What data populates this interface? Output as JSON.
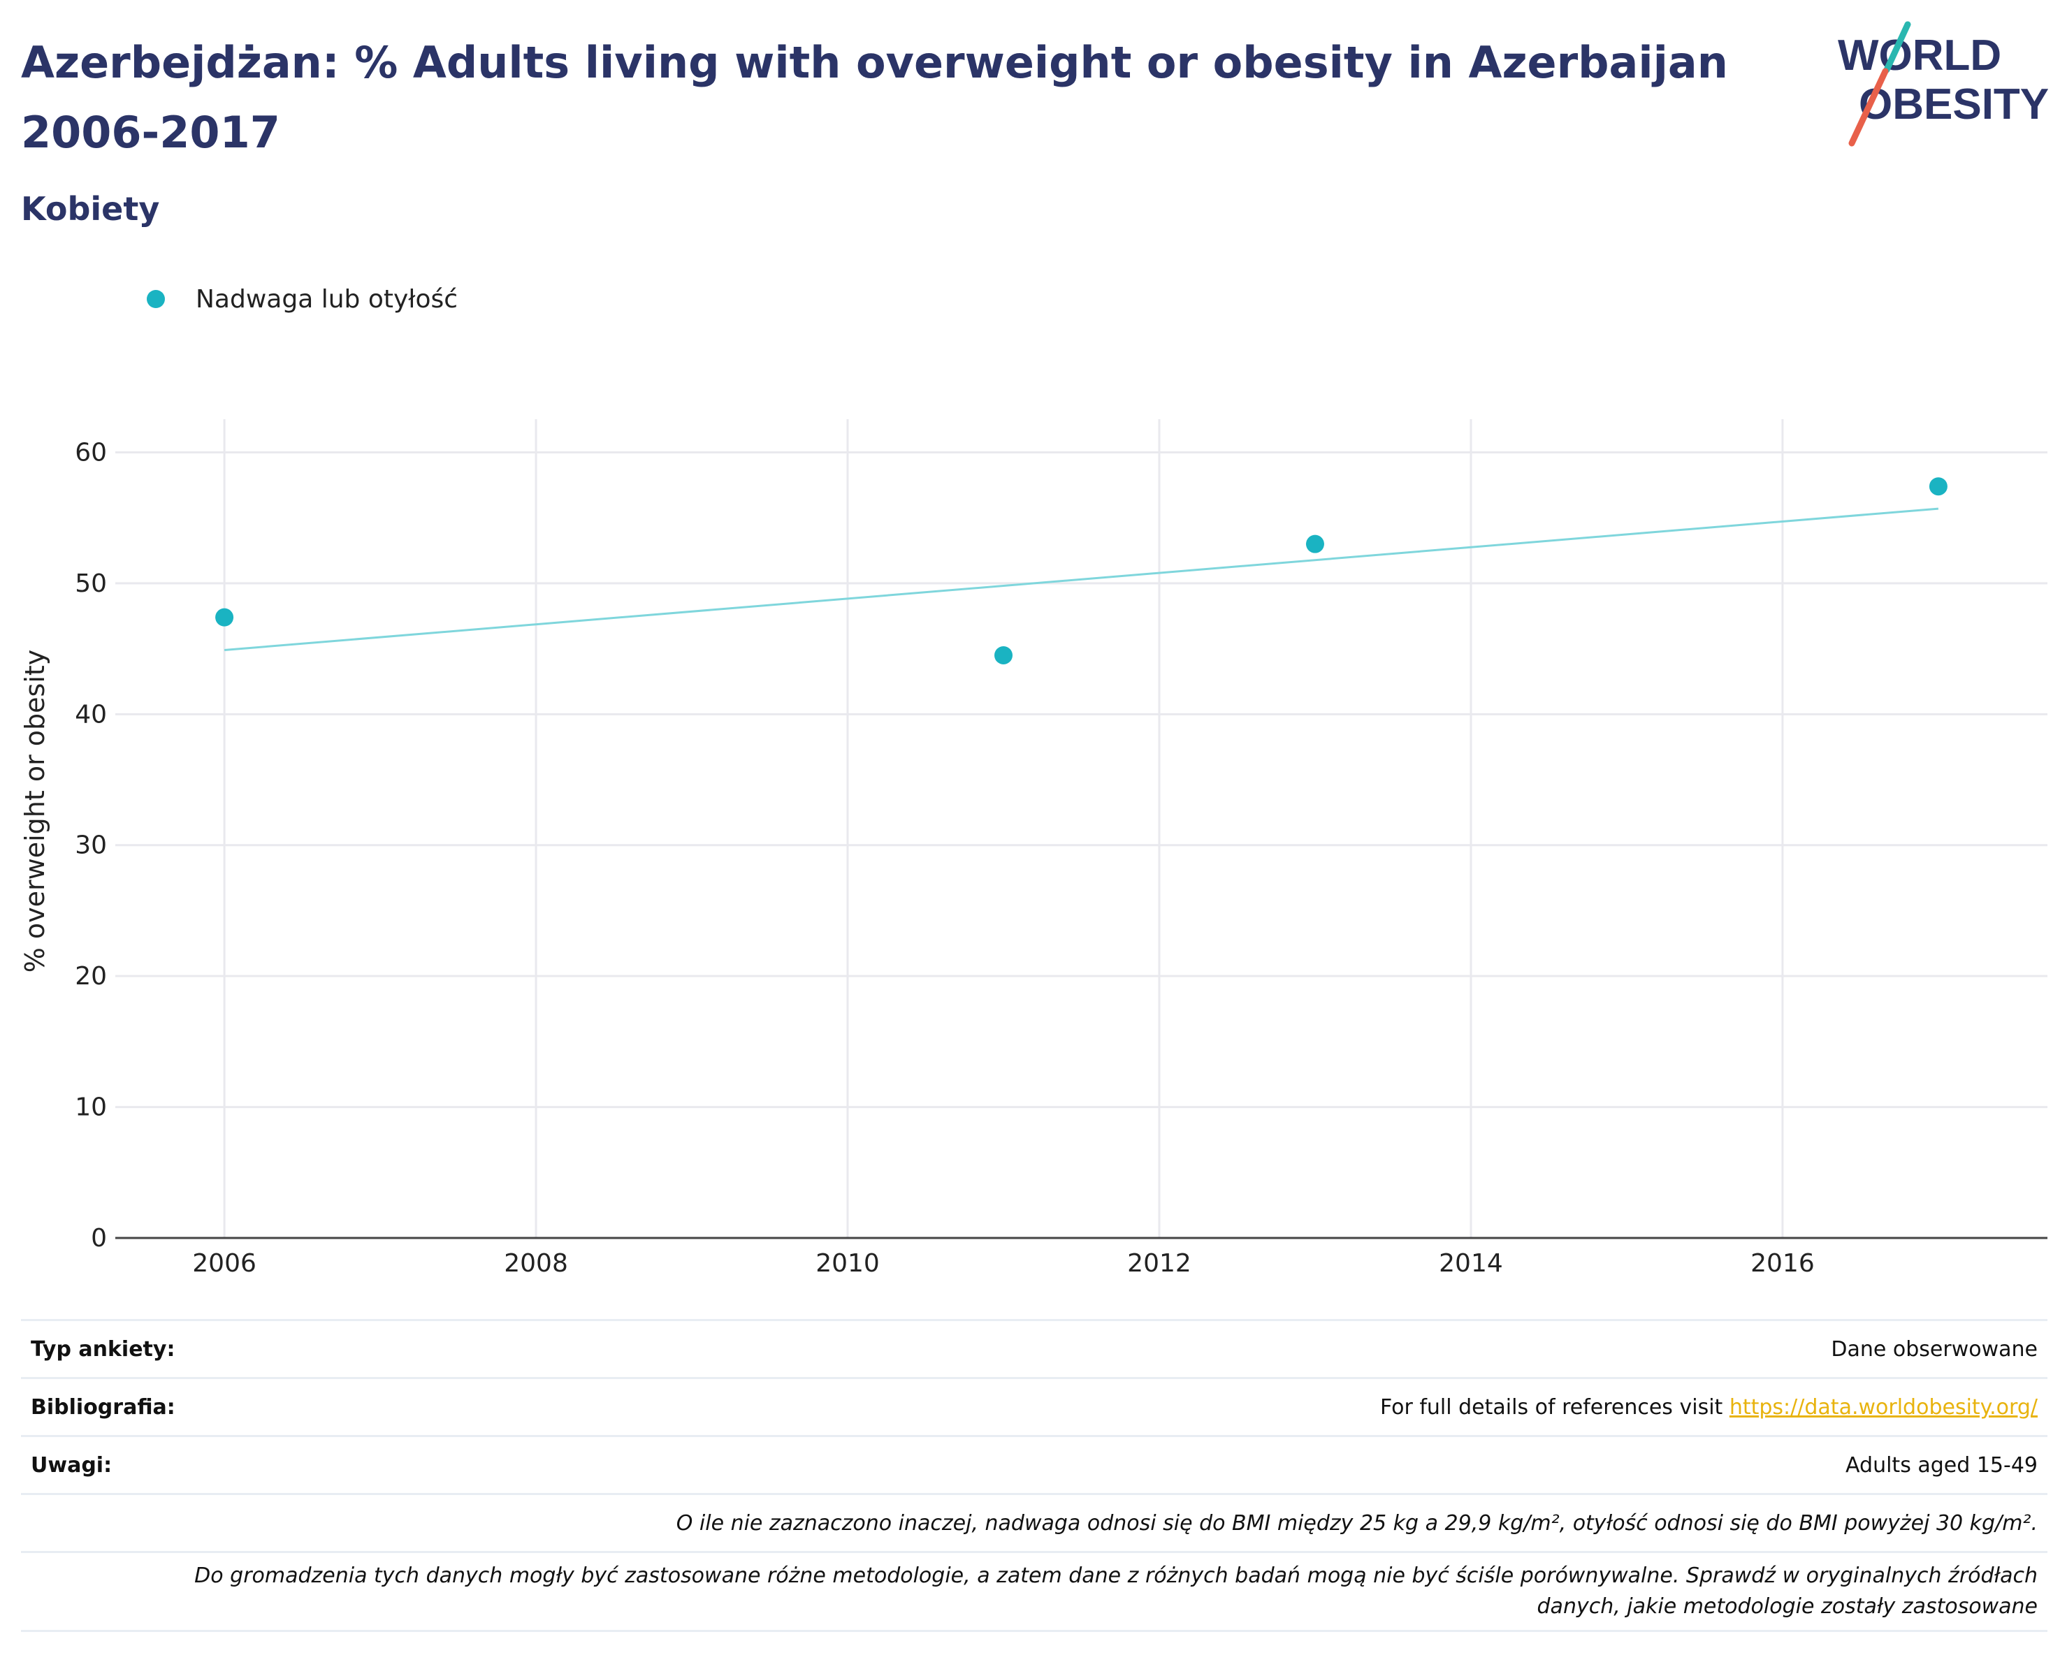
{
  "header": {
    "title": "Azerbejdżan: % Adults living with overweight or obesity in Azerbaijan 2006-2017",
    "subtitle": "Kobiety",
    "logo_line1": "WORLD",
    "logo_line2": "OBESITY"
  },
  "legend": {
    "series_label": "Nadwaga lub otyłość"
  },
  "colors": {
    "title": "#2b3467",
    "point": "#1ab3c2",
    "trend": "#7fd6dc",
    "grid": "#e9e9ee",
    "link": "#e8b30e",
    "logo_teal": "#2ab7b0",
    "logo_red": "#e8604a"
  },
  "chart_data": {
    "type": "scatter",
    "title": "Azerbejdżan: % Adults living with overweight or obesity in Azerbaijan 2006-2017",
    "subtitle": "Kobiety",
    "xlabel": "",
    "ylabel": "% overweight or obesity",
    "xlim": [
      2005.3,
      2017.7
    ],
    "ylim": [
      0,
      62
    ],
    "xticks": [
      2006,
      2008,
      2010,
      2012,
      2014,
      2016
    ],
    "yticks": [
      0,
      10,
      20,
      30,
      40,
      50,
      60
    ],
    "grid": true,
    "legend_position": "top-left",
    "series": [
      {
        "name": "Nadwaga lub otyłość",
        "x": [
          2006,
          2011,
          2013,
          2017
        ],
        "y": [
          47.4,
          44.5,
          53.0,
          57.4
        ]
      }
    ],
    "trendline": {
      "x": [
        2006,
        2017
      ],
      "y": [
        44.9,
        55.7
      ]
    }
  },
  "footer": {
    "survey_type_label": "Typ ankiety:",
    "survey_type_value": "Dane obserwowane",
    "bibliography_label": "Bibliografia:",
    "bibliography_text": "For full details of references visit ",
    "bibliography_link": "https://data.worldobesity.org/",
    "notes_label": "Uwagi:",
    "notes_value": "Adults aged 15-49",
    "bmi_note": "O ile nie zaznaczono inaczej, nadwaga odnosi się do BMI między 25 kg a 29,9 kg/m², otyłość odnosi się do BMI powyżej 30 kg/m².",
    "methodology_note_1": "Do gromadzenia tych danych mogły być zastosowane różne metodologie, a zatem dane z różnych badań mogą nie być ściśle porównywalne. Sprawdź w oryginalnych źródłach",
    "methodology_note_2": "danych, jakie metodologie zostały zastosowane"
  }
}
